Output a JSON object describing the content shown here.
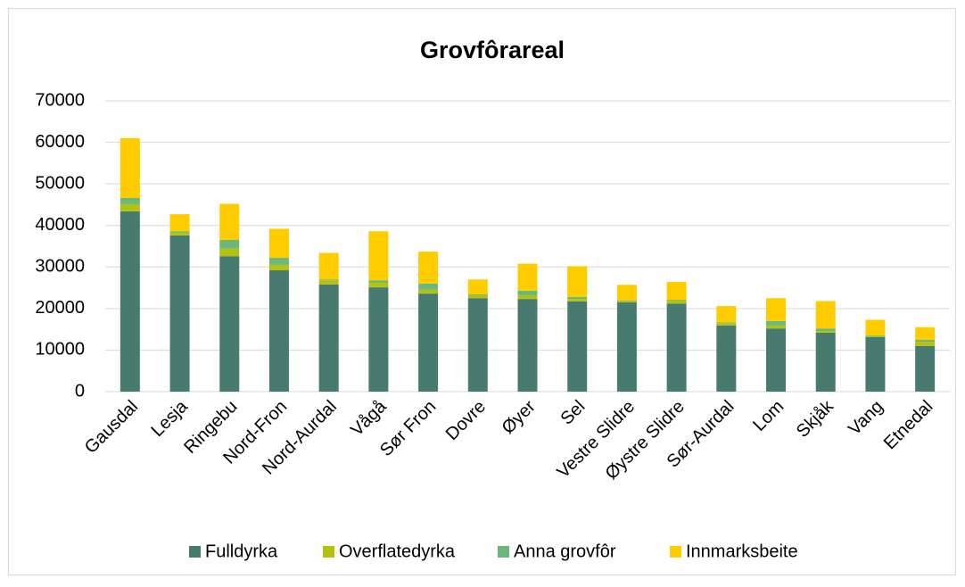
{
  "chart_data": {
    "type": "stacked_bar",
    "title": "Grovfôrareal",
    "categories": [
      "Gausdal",
      "Lesja",
      "Ringebu",
      "Nord-Fron",
      "Nord-Aurdal",
      "Vågå",
      "Sør Fron",
      "Dovre",
      "Øyer",
      "Sel",
      "Vestre Slidre",
      "Øystre Slidre",
      "Sør-Aurdal",
      "Lom",
      "Skjåk",
      "Vang",
      "Etnedal"
    ],
    "series": [
      {
        "name": "Fulldyrka",
        "color": "#477b70",
        "values": [
          43400,
          37600,
          32600,
          29200,
          25800,
          25100,
          23600,
          22500,
          22300,
          21700,
          21500,
          21200,
          15900,
          15200,
          14200,
          13100,
          11000
        ]
      },
      {
        "name": "Overflatedyrka",
        "color": "#b4c20e",
        "values": [
          1700,
          600,
          1800,
          1300,
          1000,
          1100,
          900,
          700,
          900,
          600,
          200,
          700,
          600,
          700,
          400,
          200,
          1000
        ]
      },
      {
        "name": "Anna grovfôr",
        "color": "#6cb77b",
        "values": [
          1500,
          400,
          2100,
          1700,
          200,
          600,
          1500,
          200,
          1100,
          500,
          200,
          200,
          200,
          1100,
          600,
          200,
          500
        ]
      },
      {
        "name": "Innmarksbeite",
        "color": "#ffcc00",
        "values": [
          14400,
          4100,
          8700,
          7000,
          6400,
          11800,
          7700,
          3600,
          6500,
          7400,
          3800,
          4300,
          3900,
          5500,
          6600,
          3800,
          3000
        ]
      }
    ],
    "ylim": [
      0,
      70000
    ],
    "yticks": [
      0,
      10000,
      20000,
      30000,
      40000,
      50000,
      60000,
      70000
    ],
    "grid": true,
    "legend": "bottom"
  }
}
